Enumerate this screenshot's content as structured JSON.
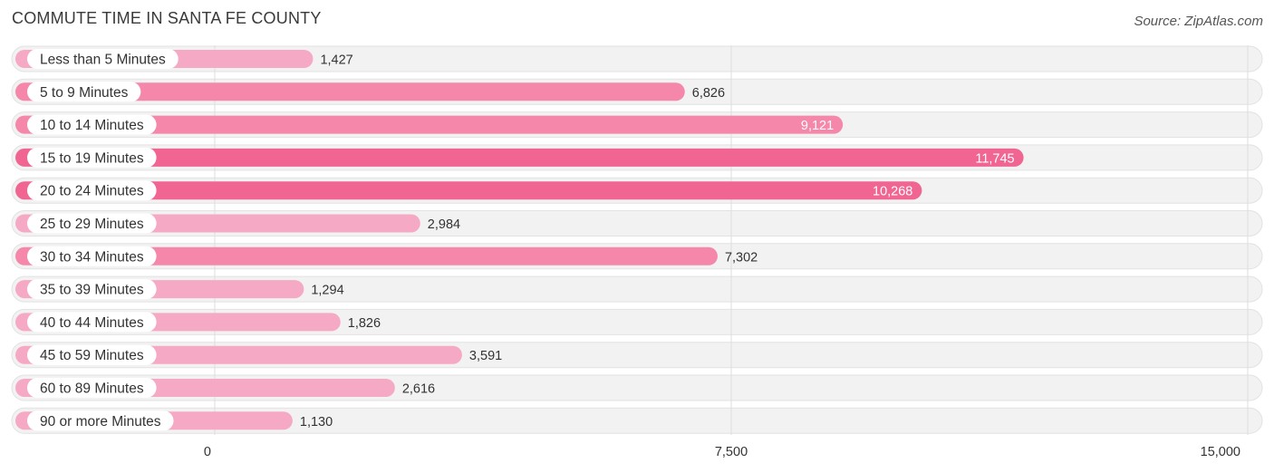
{
  "chart_data": {
    "type": "bar",
    "orientation": "horizontal",
    "title": "COMMUTE TIME IN SANTA FE COUNTY",
    "source": "Source: ZipAtlas.com",
    "categories": [
      "Less than 5 Minutes",
      "5 to 9 Minutes",
      "10 to 14 Minutes",
      "15 to 19 Minutes",
      "20 to 24 Minutes",
      "25 to 29 Minutes",
      "30 to 34 Minutes",
      "35 to 39 Minutes",
      "40 to 44 Minutes",
      "45 to 59 Minutes",
      "60 to 89 Minutes",
      "90 or more Minutes"
    ],
    "values": [
      1427,
      6826,
      9121,
      11745,
      10268,
      2984,
      7302,
      1294,
      1826,
      3591,
      2616,
      1130
    ],
    "value_labels": [
      "1,427",
      "6,826",
      "9,121",
      "11,745",
      "10,268",
      "2,984",
      "7,302",
      "1,294",
      "1,826",
      "3,591",
      "2,616",
      "1,130"
    ],
    "xlim": [
      0,
      15000
    ],
    "x_ticks": [
      0,
      7500,
      15000
    ],
    "x_tick_labels": [
      "0",
      "7,500",
      "15,000"
    ],
    "xlabel": "",
    "ylabel": "",
    "grid": true,
    "colors": {
      "bar_light": "#f6a9c4",
      "bar_mid": "#f487aa",
      "bar_dark": "#f06592",
      "track": "#f2f2f2",
      "track_border": "#e2e2e2",
      "label_pill": "#ffffff",
      "text": "#333333",
      "value_inside": "#ffffff",
      "grid": "#dddddd"
    }
  }
}
